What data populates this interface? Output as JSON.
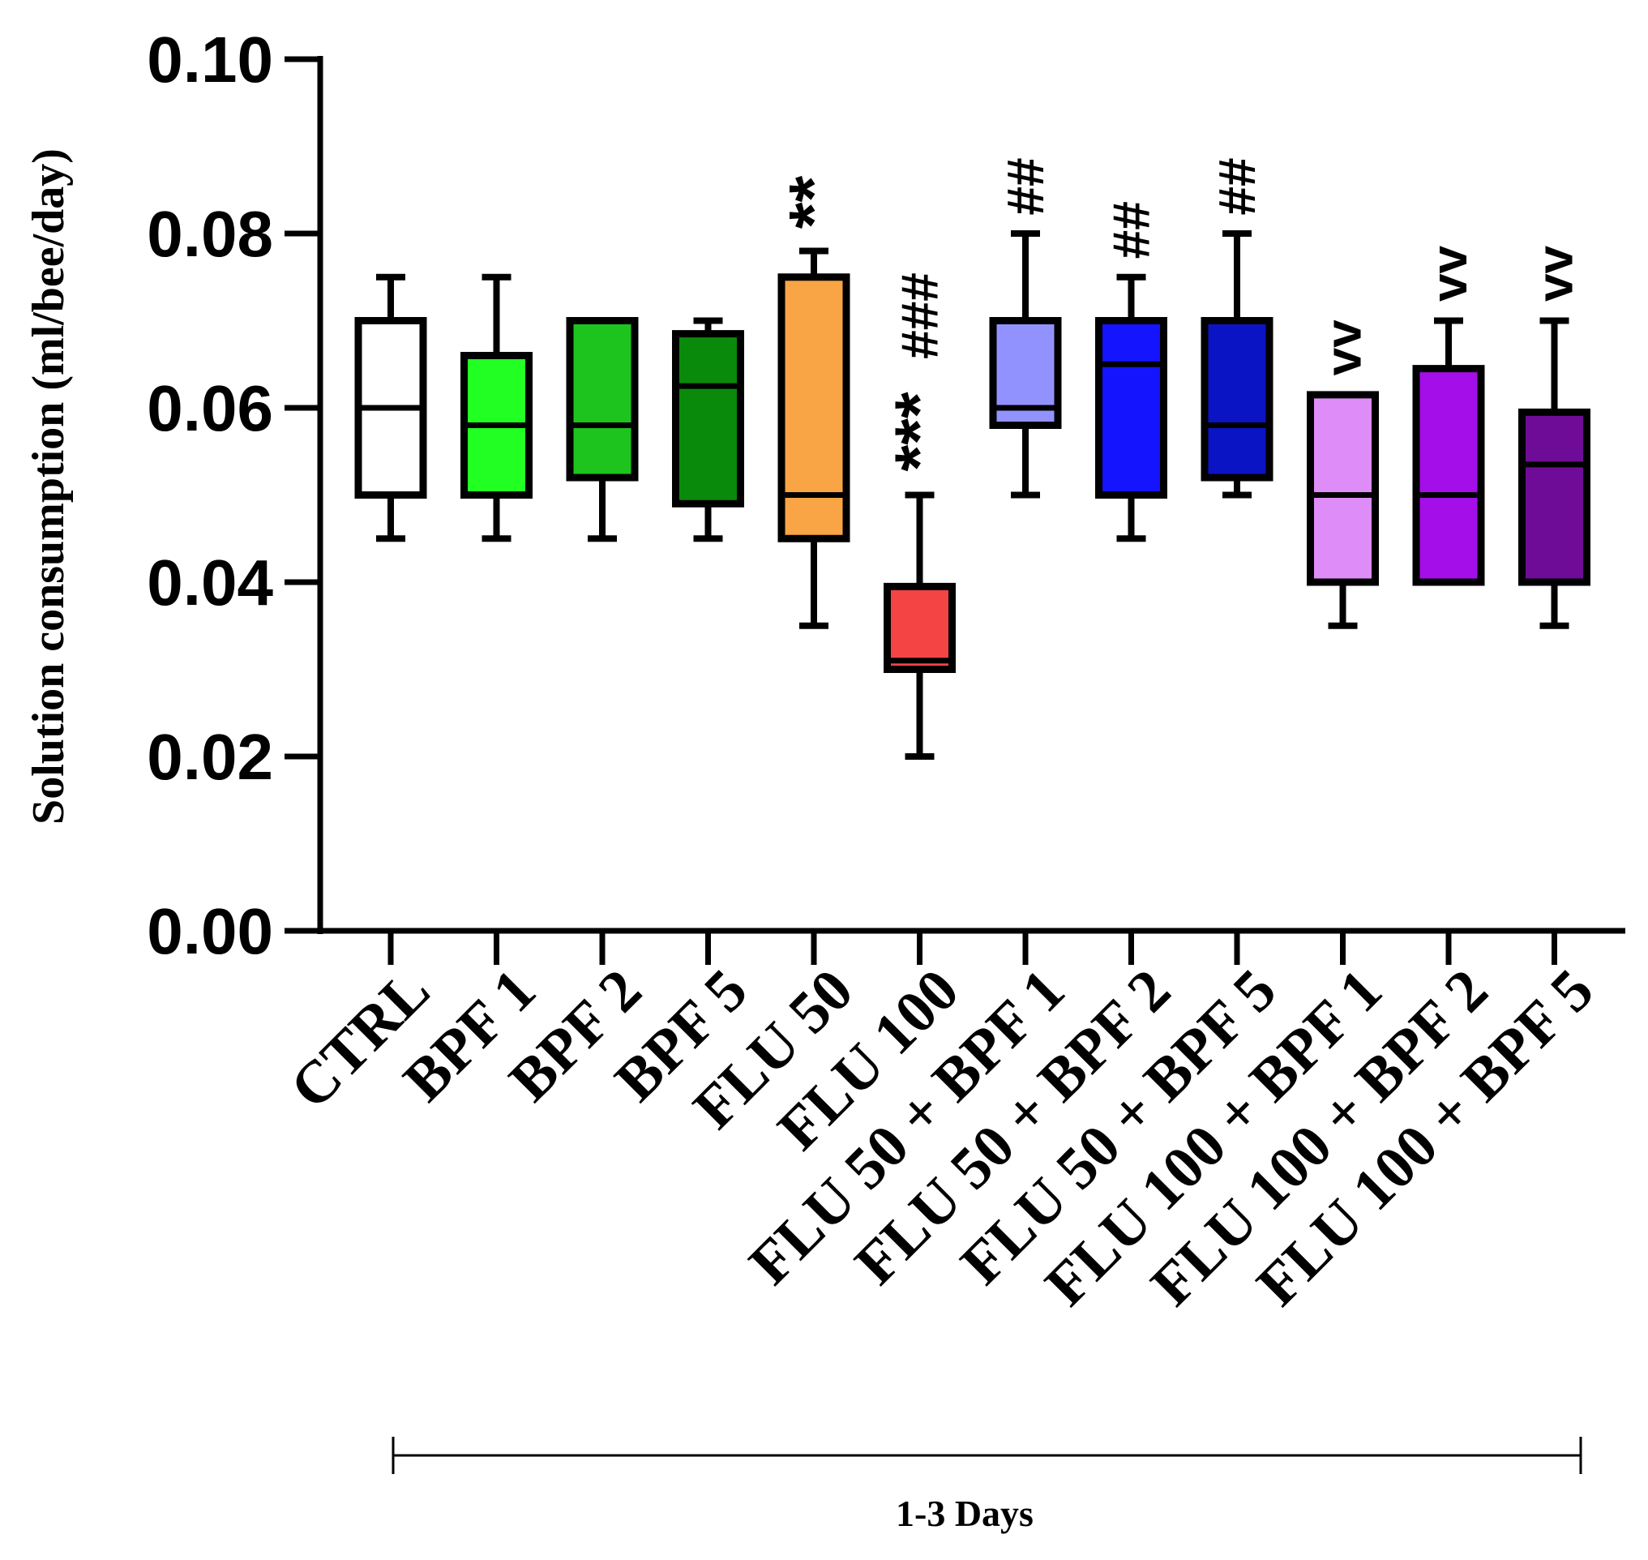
{
  "chart_data": {
    "type": "box",
    "ylabel": "Solution consumption (ml/bee/day)",
    "ylim": [
      0,
      0.1
    ],
    "yticks": [
      "0.00",
      "0.02",
      "0.04",
      "0.06",
      "0.08",
      "0.10"
    ],
    "bracket_label": "1-3 Days",
    "groups": [
      {
        "label": "CTRL",
        "min": 0.045,
        "q1": 0.05,
        "median": 0.06,
        "q3": 0.07,
        "max": 0.075,
        "color": "#ffffff",
        "annotations": []
      },
      {
        "label": "BPF 1",
        "min": 0.045,
        "q1": 0.05,
        "median": 0.058,
        "q3": 0.066,
        "max": 0.075,
        "color": "#22ff22",
        "annotations": []
      },
      {
        "label": "BPF 2",
        "min": 0.045,
        "q1": 0.052,
        "median": 0.058,
        "q3": 0.07,
        "max": 0.07,
        "color": "#1ec41e",
        "annotations": []
      },
      {
        "label": "BPF 5",
        "min": 0.045,
        "q1": 0.049,
        "median": 0.0625,
        "q3": 0.0685,
        "max": 0.07,
        "color": "#0a8a0a",
        "annotations": []
      },
      {
        "label": "FLU 50",
        "min": 0.035,
        "q1": 0.045,
        "median": 0.05,
        "q3": 0.075,
        "max": 0.078,
        "color": "#f9a545",
        "annotations": [
          "**"
        ]
      },
      {
        "label": "FLU 100",
        "min": 0.02,
        "q1": 0.03,
        "median": 0.031,
        "q3": 0.0395,
        "max": 0.05,
        "color": "#f44444",
        "annotations": [
          "***",
          "###"
        ]
      },
      {
        "label": "FLU 50 + BPF 1",
        "min": 0.05,
        "q1": 0.058,
        "median": 0.06,
        "q3": 0.07,
        "max": 0.08,
        "color": "#9292ff",
        "annotations": [
          "##"
        ]
      },
      {
        "label": "FLU 50 + BPF 2",
        "min": 0.045,
        "q1": 0.05,
        "median": 0.065,
        "q3": 0.07,
        "max": 0.075,
        "color": "#1414ff",
        "annotations": [
          "##"
        ]
      },
      {
        "label": "FLU 50 + BPF 5",
        "min": 0.05,
        "q1": 0.052,
        "median": 0.058,
        "q3": 0.07,
        "max": 0.08,
        "color": "#0a14c4",
        "annotations": [
          "##"
        ]
      },
      {
        "label": "FLU 100 + BPF 1",
        "min": 0.035,
        "q1": 0.04,
        "median": 0.05,
        "q3": 0.0615,
        "max": 0.0615,
        "color": "#de8cf7",
        "annotations": [
          "vv"
        ]
      },
      {
        "label": "FLU 100 + BPF 2",
        "min": 0.04,
        "q1": 0.04,
        "median": 0.05,
        "q3": 0.0645,
        "max": 0.07,
        "color": "#a40ee8",
        "annotations": [
          "vv"
        ]
      },
      {
        "label": "FLU 100 + BPF 5",
        "min": 0.035,
        "q1": 0.04,
        "median": 0.0535,
        "q3": 0.0595,
        "max": 0.07,
        "color": "#6e0c98",
        "annotations": [
          "vv"
        ]
      }
    ]
  }
}
